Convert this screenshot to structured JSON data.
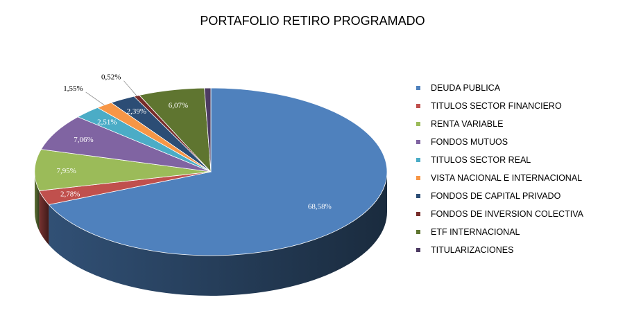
{
  "chart_data": {
    "type": "pie",
    "title": "PORTAFOLIO RETIRO PROGRAMADO",
    "legend_position": "right",
    "three_d": true,
    "slices": [
      {
        "name": "DEUDA PUBLICA",
        "value": 68.58,
        "label": "68,58%",
        "color": "#4F81BD"
      },
      {
        "name": "TITULOS SECTOR FINANCIERO",
        "value": 2.78,
        "label": "2,78%",
        "color": "#C0504D"
      },
      {
        "name": "RENTA VARIABLE",
        "value": 7.95,
        "label": "7,95%",
        "color": "#9BBB59"
      },
      {
        "name": "FONDOS MUTUOS",
        "value": 7.06,
        "label": "7,06%",
        "color": "#8064A2"
      },
      {
        "name": "TITULOS SECTOR REAL",
        "value": 2.51,
        "label": "2,51%",
        "color": "#4BACC6"
      },
      {
        "name": "VISTA NACIONAL E INTERNACIONAL",
        "value": 1.55,
        "label": "1,55%",
        "color": "#F79646"
      },
      {
        "name": "FONDOS DE CAPITAL PRIVADO",
        "value": 2.39,
        "label": "2,39%",
        "color": "#2C4D75"
      },
      {
        "name": "FONDOS DE INVERSION COLECTIVA",
        "value": 0.52,
        "label": "0,52%",
        "color": "#772C2A"
      },
      {
        "name": "ETF INTERNACIONAL",
        "value": 6.07,
        "label": "6,07%",
        "color": "#5F7530"
      },
      {
        "name": "TITULARIZACIONES",
        "value": 0.59,
        "label": "",
        "color": "#4D3B62"
      }
    ]
  }
}
